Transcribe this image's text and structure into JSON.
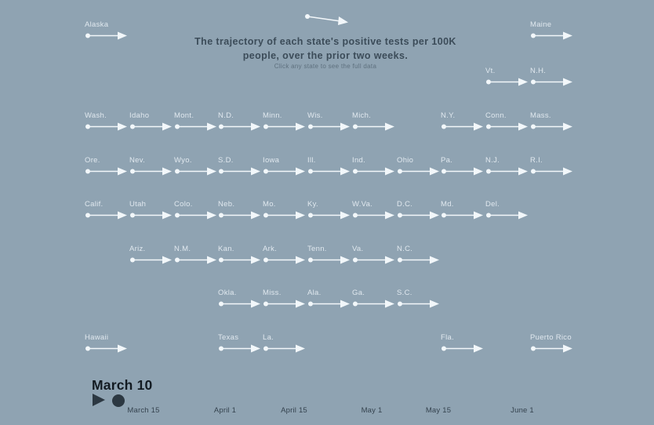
{
  "header": {
    "title": "The trajectory of each state's positive tests per 100K people, over the prior two weeks.",
    "subtitle": "Click any state to see the full data",
    "example_arrow_icon": "arrow-right-icon"
  },
  "colors": {
    "background": "#8FA3B2",
    "arrow": "#F2F7FA",
    "state_label": "#EEF5F9",
    "title_text": "#3C4C59",
    "controls_dark": "#2C3842",
    "date_text": "#131B22"
  },
  "controls": {
    "current_date": "March 10",
    "play_icon": "play-triangle",
    "slider_handle_icon": "filled-circle"
  },
  "chart_data": {
    "type": "scatter",
    "title": "The trajectory of each state's positive tests per 100K people, over the prior two weeks.",
    "subtitle": "Click any state to see the full data",
    "layout": "US tile-grid map; one right-pointing trajectory arrow per state, all flat at this animation frame",
    "current_frame": "March 10",
    "x_ticks": [
      "March 15",
      "April 1",
      "April 15",
      "May 1",
      "May 15",
      "June 1"
    ],
    "legend_position": "top-center example arrow",
    "grid": false,
    "states": [
      {
        "label": "Alaska",
        "row": 0,
        "col": 0
      },
      {
        "label": "Maine",
        "row": 0,
        "col": 10
      },
      {
        "label": "Vt.",
        "row": 1,
        "col": 9
      },
      {
        "label": "N.H.",
        "row": 1,
        "col": 10
      },
      {
        "label": "Wash.",
        "row": 2,
        "col": 0
      },
      {
        "label": "Idaho",
        "row": 2,
        "col": 1
      },
      {
        "label": "Mont.",
        "row": 2,
        "col": 2
      },
      {
        "label": "N.D.",
        "row": 2,
        "col": 3
      },
      {
        "label": "Minn.",
        "row": 2,
        "col": 4
      },
      {
        "label": "Wis.",
        "row": 2,
        "col": 5
      },
      {
        "label": "Mich.",
        "row": 2,
        "col": 6
      },
      {
        "label": "N.Y.",
        "row": 2,
        "col": 8
      },
      {
        "label": "Conn.",
        "row": 2,
        "col": 9
      },
      {
        "label": "Mass.",
        "row": 2,
        "col": 10
      },
      {
        "label": "Ore.",
        "row": 3,
        "col": 0
      },
      {
        "label": "Nev.",
        "row": 3,
        "col": 1
      },
      {
        "label": "Wyo.",
        "row": 3,
        "col": 2
      },
      {
        "label": "S.D.",
        "row": 3,
        "col": 3
      },
      {
        "label": "Iowa",
        "row": 3,
        "col": 4
      },
      {
        "label": "Ill.",
        "row": 3,
        "col": 5
      },
      {
        "label": "Ind.",
        "row": 3,
        "col": 6
      },
      {
        "label": "Ohio",
        "row": 3,
        "col": 7
      },
      {
        "label": "Pa.",
        "row": 3,
        "col": 8
      },
      {
        "label": "N.J.",
        "row": 3,
        "col": 9
      },
      {
        "label": "R.I.",
        "row": 3,
        "col": 10
      },
      {
        "label": "Calif.",
        "row": 4,
        "col": 0
      },
      {
        "label": "Utah",
        "row": 4,
        "col": 1
      },
      {
        "label": "Colo.",
        "row": 4,
        "col": 2
      },
      {
        "label": "Neb.",
        "row": 4,
        "col": 3
      },
      {
        "label": "Mo.",
        "row": 4,
        "col": 4
      },
      {
        "label": "Ky.",
        "row": 4,
        "col": 5
      },
      {
        "label": "W.Va.",
        "row": 4,
        "col": 6
      },
      {
        "label": "D.C.",
        "row": 4,
        "col": 7
      },
      {
        "label": "Md.",
        "row": 4,
        "col": 8
      },
      {
        "label": "Del.",
        "row": 4,
        "col": 9
      },
      {
        "label": "Ariz.",
        "row": 5,
        "col": 1
      },
      {
        "label": "N.M.",
        "row": 5,
        "col": 2
      },
      {
        "label": "Kan.",
        "row": 5,
        "col": 3
      },
      {
        "label": "Ark.",
        "row": 5,
        "col": 4
      },
      {
        "label": "Tenn.",
        "row": 5,
        "col": 5
      },
      {
        "label": "Va.",
        "row": 5,
        "col": 6
      },
      {
        "label": "N.C.",
        "row": 5,
        "col": 7
      },
      {
        "label": "Okla.",
        "row": 6,
        "col": 3
      },
      {
        "label": "Miss.",
        "row": 6,
        "col": 4
      },
      {
        "label": "Ala.",
        "row": 6,
        "col": 5
      },
      {
        "label": "Ga.",
        "row": 6,
        "col": 6
      },
      {
        "label": "S.C.",
        "row": 6,
        "col": 7
      },
      {
        "label": "Hawaii",
        "row": 7,
        "col": 0
      },
      {
        "label": "Texas",
        "row": 7,
        "col": 3
      },
      {
        "label": "La.",
        "row": 7,
        "col": 4
      },
      {
        "label": "Fla.",
        "row": 7,
        "col": 8
      },
      {
        "label": "Puerto Rico",
        "row": 7,
        "col": 10
      }
    ]
  }
}
